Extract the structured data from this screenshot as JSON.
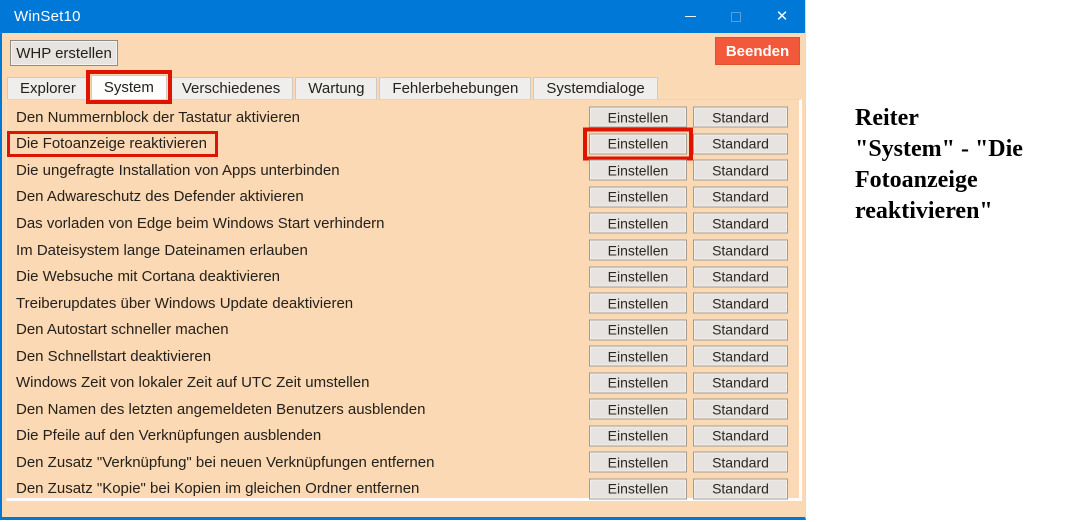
{
  "window": {
    "title": "WinSet10",
    "titlebar_icons": [
      "minimize-icon",
      "maximize-icon",
      "close-icon"
    ],
    "close_glyph": "✕"
  },
  "toolbar": {
    "whp_label": "WHP erstellen",
    "beenden_label": "Beenden"
  },
  "tabs": [
    {
      "label": "Explorer"
    },
    {
      "label": "System"
    },
    {
      "label": "Verschiedenes"
    },
    {
      "label": "Wartung"
    },
    {
      "label": "Fehlerbehebungen"
    },
    {
      "label": "Systemdialoge"
    }
  ],
  "active_tab_index": 1,
  "settings": {
    "set_button_label": "Einstellen",
    "default_button_label": "Standard",
    "rows": [
      "Den Nummernblock der Tastatur aktivieren",
      "Die Fotoanzeige reaktivieren",
      "Die ungefragte Installation von Apps unterbinden",
      "Den Adwareschutz des Defender aktivieren",
      "Das vorladen von Edge beim Windows Start verhindern",
      "Im Dateisystem lange Dateinamen erlauben",
      "Die Websuche mit Cortana deaktivieren",
      "Treiberupdates über Windows Update deaktivieren",
      "Den Autostart schneller machen",
      "Den Schnellstart deaktivieren",
      "Windows Zeit von lokaler Zeit auf UTC Zeit umstellen",
      "Den Namen des letzten angemeldeten Benutzers ausblenden",
      "Die Pfeile auf den Verknüpfungen ausblenden",
      "Den Zusatz \"Verknüpfung\" bei neuen Verknüpfungen entfernen",
      "Den Zusatz \"Kopie\" bei Kopien im gleichen Ordner entfernen"
    ]
  },
  "highlight": {
    "tab_index": 1,
    "row_index": 1,
    "highlighted_row_label": "Die Fotoanzeige reaktivieren",
    "highlighted_button": "Einstellen"
  },
  "annotation": {
    "text": "Reiter\n\"System\" - \"Die\nFotoanzeige\nreaktivieren\""
  },
  "colors": {
    "titlebar_bg": "#0078D7",
    "window_bg": "#FBD9B4",
    "highlight_red": "#DF1400",
    "exit_button_bg": "#F2593B",
    "button_bg": "#E6E3E0",
    "button_border": "#A39C93",
    "tab_bg": "#F0EEEC",
    "tab_active_bg": "#FDFDFD",
    "text": "#24201B"
  }
}
